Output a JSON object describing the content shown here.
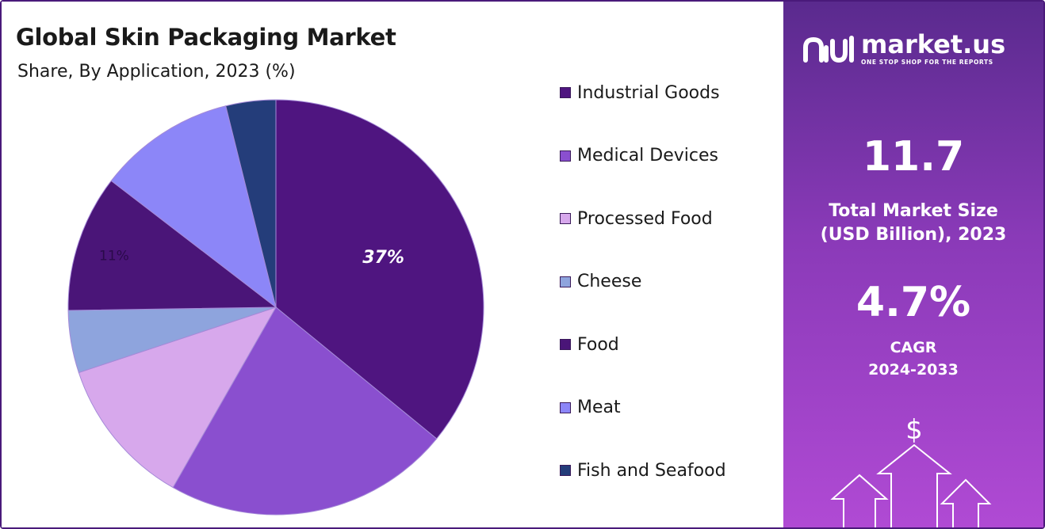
{
  "header": {
    "title": "Global Skin Packaging Market",
    "subtitle": "Share, By Application, 2023 (%)"
  },
  "chart_data": {
    "type": "pie",
    "categories": [
      "Industrial Goods",
      "Medical Devices",
      "Processed Food",
      "Cheese",
      "Food",
      "Meat",
      "Fish and Seafood"
    ],
    "values": [
      37,
      23,
      12,
      5,
      11,
      11,
      4
    ],
    "colors": [
      "#4f1580",
      "#8a4fcf",
      "#d7a8ec",
      "#8ea4dd",
      "#4a1578",
      "#8c86f8",
      "#243d7a"
    ],
    "data_labels": [
      {
        "category": "Industrial Goods",
        "text": "37%"
      },
      {
        "category": "Food",
        "text": "11%"
      }
    ],
    "legend_position": "right"
  },
  "sidebar": {
    "brand_name": "market.us",
    "brand_tagline": "ONE STOP SHOP FOR THE REPORTS",
    "market_size_value": "11.7",
    "market_size_label_1": "Total Market Size",
    "market_size_label_2": "(USD Billion), 2023",
    "cagr_value": "4.7%",
    "cagr_label": "CAGR",
    "cagr_period": "2024-2033",
    "dollar_symbol": "$",
    "icons": [
      "market-us-logo-icon",
      "dollar-icon",
      "up-arrow-icon"
    ]
  }
}
